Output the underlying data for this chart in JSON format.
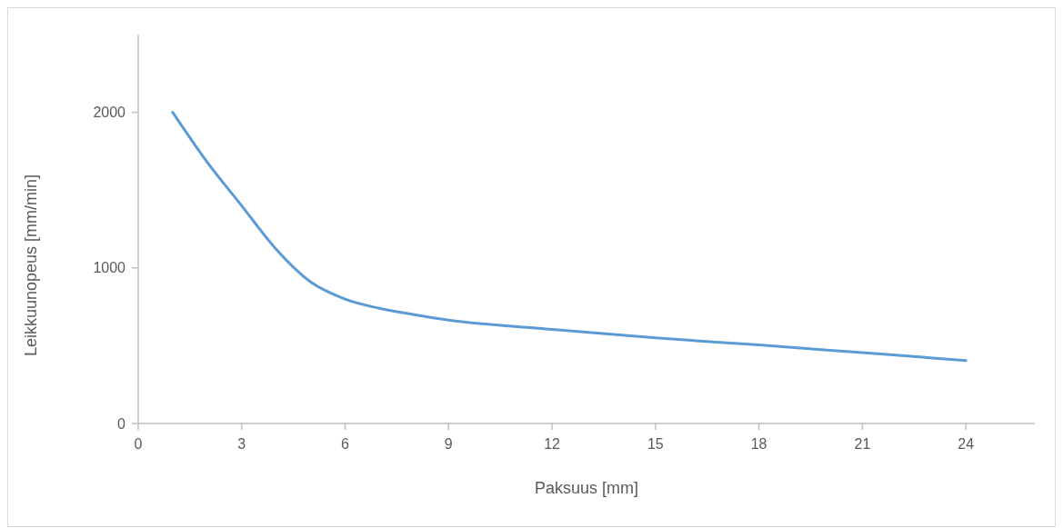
{
  "chart_data": {
    "type": "line",
    "xlabel": "Paksuus [mm]",
    "ylabel": "Leikkuunopeus [mm/min]",
    "x": [
      1,
      2,
      3,
      4,
      5,
      6,
      7,
      8,
      9,
      12,
      15,
      18,
      21,
      24
    ],
    "series": [
      {
        "color": "#5b9bd5",
        "values": [
          2000,
          1680,
          1400,
          1120,
          910,
          800,
          740,
          700,
          665,
          605,
          550,
          505,
          455,
          405
        ]
      }
    ],
    "xlim": [
      0,
      26
    ],
    "xticks": [
      0,
      3,
      6,
      9,
      12,
      15,
      18,
      21,
      24
    ],
    "ylim": [
      0,
      2500
    ],
    "yticks": [
      0,
      1000,
      2000
    ],
    "grid": false,
    "marker": "none",
    "line_style": "solid"
  }
}
